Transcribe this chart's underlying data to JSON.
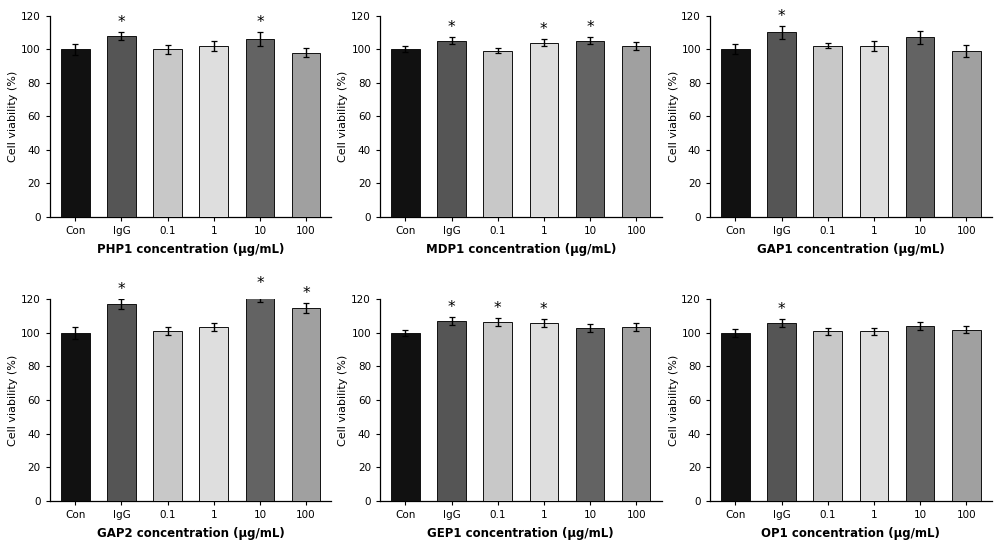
{
  "subplots": [
    {
      "title": "PHP1 concentration (μg/mL)",
      "categories": [
        "Con",
        "IgG",
        "0.1",
        "1",
        "10",
        "100"
      ],
      "values": [
        100.0,
        108.0,
        100.0,
        102.0,
        106.0,
        98.0
      ],
      "errors": [
        3.2,
        2.5,
        2.8,
        3.0,
        4.0,
        2.8
      ],
      "sig": [
        false,
        true,
        false,
        false,
        true,
        false
      ]
    },
    {
      "title": "MDP1 concentration (μg/mL)",
      "categories": [
        "Con",
        "IgG",
        "0.1",
        "1",
        "10",
        "100"
      ],
      "values": [
        100.0,
        105.0,
        99.0,
        104.0,
        105.0,
        102.0
      ],
      "errors": [
        1.8,
        2.0,
        1.5,
        2.0,
        2.0,
        2.2
      ],
      "sig": [
        false,
        true,
        false,
        true,
        true,
        false
      ]
    },
    {
      "title": "GAP1 concentration (μg/mL)",
      "categories": [
        "Con",
        "IgG",
        "0.1",
        "1",
        "10",
        "100"
      ],
      "values": [
        100.0,
        110.0,
        102.0,
        102.0,
        107.0,
        99.0
      ],
      "errors": [
        3.0,
        4.0,
        1.5,
        3.0,
        4.0,
        3.5
      ],
      "sig": [
        false,
        true,
        false,
        false,
        false,
        false
      ]
    },
    {
      "title": "GAP2 concentration (μg/mL)",
      "categories": [
        "Con",
        "IgG",
        "0.1",
        "1",
        "10",
        "100"
      ],
      "values": [
        100.0,
        117.0,
        101.0,
        103.5,
        121.0,
        115.0
      ],
      "errors": [
        3.5,
        3.0,
        2.5,
        2.5,
        2.5,
        3.0
      ],
      "sig": [
        false,
        true,
        false,
        false,
        true,
        true
      ]
    },
    {
      "title": "GEP1 concentration (μg/mL)",
      "categories": [
        "Con",
        "IgG",
        "0.1",
        "1",
        "10",
        "100"
      ],
      "values": [
        100.0,
        107.0,
        106.5,
        106.0,
        103.0,
        103.5
      ],
      "errors": [
        2.0,
        2.5,
        2.5,
        2.5,
        2.5,
        2.5
      ],
      "sig": [
        false,
        true,
        true,
        true,
        false,
        false
      ]
    },
    {
      "title": "OP1 concentration (μg/mL)",
      "categories": [
        "Con",
        "IgG",
        "0.1",
        "1",
        "10",
        "100"
      ],
      "values": [
        100.0,
        106.0,
        101.0,
        101.0,
        104.0,
        102.0
      ],
      "errors": [
        2.2,
        2.5,
        2.0,
        2.0,
        2.5,
        2.0
      ],
      "sig": [
        false,
        true,
        false,
        false,
        false,
        false
      ]
    }
  ],
  "bar_colors": [
    "#111111",
    "#555555",
    "#c8c8c8",
    "#dedede",
    "#636363",
    "#a0a0a0"
  ],
  "ylabel": "Cell viability (%)",
  "ylim": [
    0,
    120
  ],
  "yticks": [
    0,
    20,
    40,
    60,
    80,
    100,
    120
  ],
  "bar_width": 0.62,
  "edgecolor": "#111111",
  "sig_fontsize": 11,
  "xlabel_fontsize": 8.5,
  "ylabel_fontsize": 8,
  "tick_fontsize": 7.5,
  "background_color": "#ffffff"
}
